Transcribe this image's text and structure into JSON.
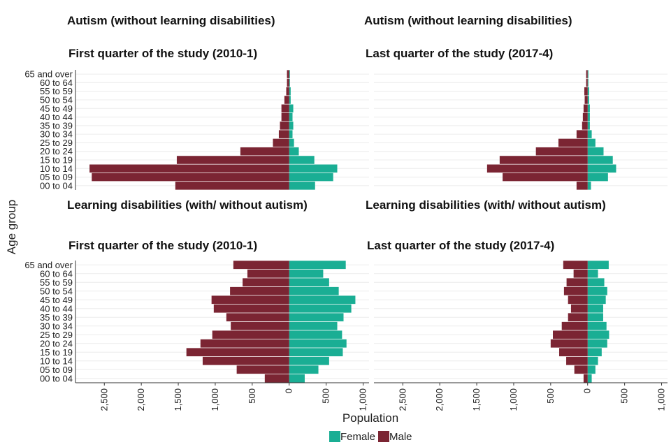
{
  "y_label": "Age group",
  "x_label": "Population",
  "chart_data": [
    {
      "type": "bar",
      "title": "Autism (without learning disabilities)",
      "subtitle": "First quarter of the study (2010-1)",
      "categories": [
        "00 to 04",
        "05 to 09",
        "10 to 14",
        "15 to 19",
        "20 to 24",
        "25 to 29",
        "30 to 34",
        "35 to 39",
        "40 to 44",
        "45 to 49",
        "50 to 54",
        "55 to 59",
        "60 to 64",
        "65 and over"
      ],
      "series": [
        {
          "name": "Female",
          "color": "#1aae94",
          "values": [
            350,
            595,
            650,
            340,
            130,
            65,
            45,
            55,
            45,
            55,
            20,
            20,
            10,
            10
          ]
        },
        {
          "name": "Male",
          "color": "#7b2533",
          "values": [
            -1540,
            -2670,
            -2700,
            -1520,
            -660,
            -220,
            -140,
            -125,
            -105,
            -105,
            -65,
            -40,
            -30,
            -30
          ]
        }
      ],
      "xlim": [
        -2890,
        1080
      ]
    },
    {
      "type": "bar",
      "title": "Autism (without learning disabilities)",
      "subtitle": "Last quarter of the study (2017-4)",
      "series": [
        {
          "name": "Female",
          "color": "#1aae94",
          "values": [
            45,
            275,
            385,
            340,
            215,
            105,
            55,
            30,
            30,
            30,
            20,
            20,
            10,
            10
          ]
        },
        {
          "name": "Male",
          "color": "#7b2533",
          "values": [
            -150,
            -1150,
            -1360,
            -1190,
            -700,
            -395,
            -150,
            -75,
            -65,
            -55,
            -40,
            -45,
            -20,
            -20
          ]
        }
      ],
      "xlim": [
        -2890,
        1080
      ]
    },
    {
      "type": "bar",
      "title": "Learning disabilities (with/ without autism)",
      "subtitle": "First quarter of the study (2010-1)",
      "categories": [
        "00 to 04",
        "05 to 09",
        "10 to 14",
        "15 to 19",
        "20 to 24",
        "25 to 29",
        "30 to 34",
        "35 to 39",
        "40 to 44",
        "45 to 49",
        "50 to 54",
        "55 to 59",
        "60 to 64",
        "65 and over"
      ],
      "series": [
        {
          "name": "Female",
          "color": "#1aae94",
          "values": [
            210,
            395,
            540,
            725,
            775,
            715,
            650,
            735,
            840,
            895,
            670,
            540,
            460,
            765
          ]
        },
        {
          "name": "Male",
          "color": "#7b2533",
          "values": [
            -330,
            -710,
            -1170,
            -1390,
            -1200,
            -1040,
            -790,
            -850,
            -1020,
            -1050,
            -800,
            -630,
            -565,
            -755
          ]
        }
      ],
      "xlim": [
        -2890,
        1080
      ],
      "xticks": [
        {
          "value": -2500,
          "label": "2,500"
        },
        {
          "value": -2000,
          "label": "2,000"
        },
        {
          "value": -1500,
          "label": "1,500"
        },
        {
          "value": -1000,
          "label": "1,000"
        },
        {
          "value": -500,
          "label": "500"
        },
        0,
        500,
        {
          "value": 1000,
          "label": "1,000"
        }
      ]
    },
    {
      "type": "bar",
      "title": "Learning disabilities (with/ without autism)",
      "subtitle": "Last quarter of the study (2017-4)",
      "series": [
        {
          "name": "Female",
          "color": "#1aae94",
          "values": [
            55,
            105,
            140,
            190,
            265,
            290,
            255,
            210,
            210,
            245,
            265,
            225,
            140,
            285
          ]
        },
        {
          "name": "Male",
          "color": "#7b2533",
          "values": [
            -55,
            -180,
            -290,
            -385,
            -500,
            -470,
            -350,
            -265,
            -225,
            -265,
            -320,
            -285,
            -190,
            -330
          ]
        }
      ],
      "xlim": [
        -2890,
        1080
      ],
      "xticks": [
        {
          "value": -2500,
          "label": "2,500"
        },
        {
          "value": -2000,
          "label": "2,000"
        },
        {
          "value": -1500,
          "label": "1,500"
        },
        {
          "value": -1000,
          "label": "1,000"
        },
        {
          "value": -500,
          "label": "500"
        },
        0,
        500,
        {
          "value": 1000,
          "label": "1,000"
        }
      ]
    }
  ]
}
